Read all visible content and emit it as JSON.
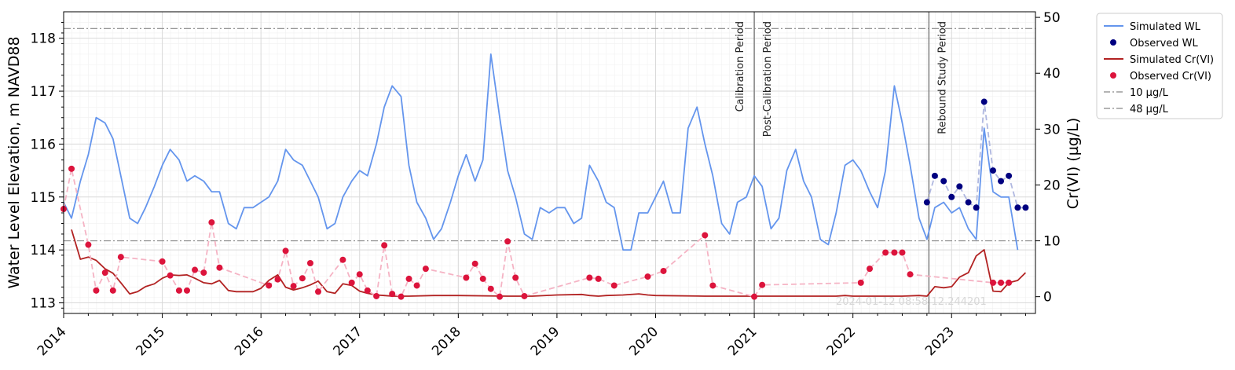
{
  "chart_data": {
    "type": "line",
    "title": "",
    "ylabel_left": "Water Level Elevation, m NAVD88",
    "ylabel_right": "Cr(VI) (µg/L)",
    "xlim": [
      2014.0,
      2023.85
    ],
    "ylim_left": [
      112.8,
      118.5
    ],
    "ylim_right": [
      -3.0,
      51.0
    ],
    "x_ticks": [
      2014,
      2015,
      2016,
      2017,
      2018,
      2019,
      2020,
      2021,
      2022,
      2023
    ],
    "x_tick_labels": [
      "2014",
      "2015",
      "2016",
      "2017",
      "2018",
      "2019",
      "2020",
      "2021",
      "2022",
      "2023"
    ],
    "y_left_ticks": [
      113,
      114,
      115,
      116,
      117,
      118
    ],
    "y_left_tick_labels": [
      "113",
      "114",
      "115",
      "116",
      "117",
      "118"
    ],
    "y_right_ticks": [
      0,
      10,
      20,
      30,
      40,
      50
    ],
    "y_right_tick_labels": [
      "0",
      "10",
      "20",
      "30",
      "40",
      "50"
    ],
    "grid": true,
    "legend_position": "outside-top-right",
    "watermark": "2024-01-12 08:58:12.244201",
    "periods": [
      {
        "x": 2021.0,
        "label": "Calibration Period",
        "side": "left"
      },
      {
        "x": 2021.0,
        "label": "Post-Calibration Period",
        "side": "right"
      },
      {
        "x": 2022.77,
        "label": "Rebound Study Period",
        "side": "right"
      }
    ],
    "hlines": [
      {
        "name": "10 µg/L",
        "y": 10,
        "color": "#888888"
      },
      {
        "name": "48 µg/L",
        "y": 48,
        "color": "#888888"
      }
    ],
    "series": [
      {
        "name": "Simulated WL",
        "kind": "line",
        "axis": "left",
        "color": "#6495ed",
        "x": [
          2014.0,
          2014.08,
          2014.17,
          2014.25,
          2014.33,
          2014.42,
          2014.5,
          2014.58,
          2014.67,
          2014.75,
          2014.83,
          2014.92,
          2015.0,
          2015.08,
          2015.17,
          2015.25,
          2015.33,
          2015.42,
          2015.5,
          2015.58,
          2015.67,
          2015.75,
          2015.83,
          2015.92,
          2016.0,
          2016.08,
          2016.17,
          2016.25,
          2016.33,
          2016.42,
          2016.5,
          2016.58,
          2016.67,
          2016.75,
          2016.83,
          2016.92,
          2017.0,
          2017.08,
          2017.17,
          2017.25,
          2017.33,
          2017.42,
          2017.5,
          2017.58,
          2017.67,
          2017.75,
          2017.83,
          2017.92,
          2018.0,
          2018.08,
          2018.17,
          2018.25,
          2018.33,
          2018.42,
          2018.5,
          2018.58,
          2018.67,
          2018.75,
          2018.83,
          2018.92,
          2019.0,
          2019.08,
          2019.17,
          2019.25,
          2019.33,
          2019.42,
          2019.5,
          2019.58,
          2019.67,
          2019.75,
          2019.83,
          2019.92,
          2020.0,
          2020.08,
          2020.17,
          2020.25,
          2020.33,
          2020.42,
          2020.5,
          2020.58,
          2020.67,
          2020.75,
          2020.83,
          2020.92,
          2021.0,
          2021.08,
          2021.17,
          2021.25,
          2021.33,
          2021.42,
          2021.5,
          2021.58,
          2021.67,
          2021.75,
          2021.83,
          2021.92,
          2022.0,
          2022.08,
          2022.17,
          2022.25,
          2022.33,
          2022.42,
          2022.5,
          2022.58,
          2022.67,
          2022.75,
          2022.83,
          2022.92,
          2023.0,
          2023.08,
          2023.17,
          2023.25,
          2023.33,
          2023.42,
          2023.5,
          2023.58,
          2023.67
        ],
        "y": [
          114.9,
          114.6,
          115.3,
          115.8,
          116.5,
          116.4,
          116.1,
          115.4,
          114.6,
          114.5,
          114.8,
          115.2,
          115.6,
          115.9,
          115.7,
          115.3,
          115.4,
          115.3,
          115.1,
          115.1,
          114.5,
          114.4,
          114.8,
          114.8,
          114.9,
          115.0,
          115.3,
          115.9,
          115.7,
          115.6,
          115.3,
          115.0,
          114.4,
          114.5,
          115.0,
          115.3,
          115.5,
          115.4,
          116.0,
          116.7,
          117.1,
          116.9,
          115.6,
          114.9,
          114.6,
          114.2,
          114.4,
          114.9,
          115.4,
          115.8,
          115.3,
          115.7,
          117.7,
          116.5,
          115.5,
          115.0,
          114.3,
          114.2,
          114.8,
          114.7,
          114.8,
          114.8,
          114.5,
          114.6,
          115.6,
          115.3,
          114.9,
          114.8,
          114.0,
          114.0,
          114.7,
          114.7,
          115.0,
          115.3,
          114.7,
          114.7,
          116.3,
          116.7,
          116.0,
          115.4,
          114.5,
          114.3,
          114.9,
          115.0,
          115.4,
          115.2,
          114.4,
          114.6,
          115.5,
          115.9,
          115.3,
          115.0,
          114.2,
          114.1,
          114.7,
          115.6,
          115.7,
          115.5,
          115.1,
          114.8,
          115.5,
          117.1,
          116.4,
          115.6,
          114.6,
          114.2,
          114.8,
          114.9,
          114.7,
          114.8,
          114.4,
          114.2,
          116.3,
          115.1,
          115.0,
          115.0,
          114.0
        ]
      },
      {
        "name": "Observed WL",
        "kind": "scatter",
        "axis": "left",
        "color": "#000080",
        "dashed_color": "#b0b8e0",
        "x": [
          2022.75,
          2022.83,
          2022.92,
          2023.0,
          2023.08,
          2023.17,
          2023.25,
          2023.33,
          2023.42,
          2023.5,
          2023.58,
          2023.67,
          2023.75
        ],
        "y": [
          114.9,
          115.4,
          115.3,
          115.0,
          115.2,
          114.9,
          114.8,
          116.8,
          115.5,
          115.3,
          115.4,
          114.8,
          114.8
        ]
      },
      {
        "name": "Simulated Cr(VI)",
        "kind": "line",
        "axis": "right",
        "color": "#b22222",
        "x": [
          2014.08,
          2014.17,
          2014.25,
          2014.33,
          2014.42,
          2014.5,
          2014.58,
          2014.67,
          2014.75,
          2014.83,
          2014.92,
          2015.0,
          2015.08,
          2015.17,
          2015.25,
          2015.33,
          2015.42,
          2015.5,
          2015.58,
          2015.67,
          2015.75,
          2015.83,
          2015.92,
          2016.0,
          2016.08,
          2016.17,
          2016.25,
          2016.33,
          2016.42,
          2016.5,
          2016.58,
          2016.67,
          2016.75,
          2016.83,
          2016.92,
          2017.0,
          2017.08,
          2017.17,
          2017.25,
          2017.33,
          2017.5,
          2017.75,
          2018.0,
          2018.5,
          2018.75,
          2019.0,
          2019.25,
          2019.33,
          2019.42,
          2019.5,
          2019.67,
          2019.83,
          2019.92,
          2020.0,
          2020.5,
          2021.0,
          2021.5,
          2021.83,
          2021.92,
          2022.0,
          2022.5,
          2022.67,
          2022.75,
          2022.83,
          2022.92,
          2023.0,
          2023.08,
          2023.17,
          2023.25,
          2023.33,
          2023.42,
          2023.5,
          2023.58,
          2023.67,
          2023.75
        ],
        "y": [
          12.0,
          6.7,
          7.1,
          6.5,
          5.0,
          4.2,
          2.5,
          0.5,
          0.9,
          1.8,
          2.3,
          3.3,
          3.9,
          3.8,
          3.9,
          3.3,
          2.5,
          2.3,
          2.9,
          1.1,
          0.9,
          0.9,
          0.9,
          1.5,
          2.9,
          3.9,
          1.7,
          1.2,
          1.6,
          2.1,
          2.8,
          0.9,
          0.6,
          2.3,
          2.0,
          1.0,
          0.6,
          0.3,
          0.2,
          0.1,
          0.1,
          0.2,
          0.2,
          0.1,
          0.1,
          0.3,
          0.4,
          0.2,
          0.1,
          0.2,
          0.3,
          0.5,
          0.3,
          0.2,
          0.1,
          0.1,
          0.1,
          0.1,
          0.2,
          0.1,
          0.1,
          0.2,
          0.1,
          1.8,
          1.6,
          1.8,
          3.5,
          4.3,
          7.3,
          8.4,
          1.0,
          0.9,
          2.5,
          2.9,
          4.3
        ]
      },
      {
        "name": "Observed Cr(VI)",
        "kind": "scatter",
        "axis": "right",
        "color": "#dc143c",
        "dashed_color": "#f5b3c4",
        "x": [
          2014.0,
          2014.08,
          2014.25,
          2014.33,
          2014.42,
          2014.5,
          2014.58,
          2015.0,
          2015.08,
          2015.17,
          2015.25,
          2015.33,
          2015.42,
          2015.5,
          2015.58,
          2016.08,
          2016.17,
          2016.25,
          2016.33,
          2016.42,
          2016.5,
          2016.58,
          2016.83,
          2016.92,
          2017.0,
          2017.08,
          2017.17,
          2017.25,
          2017.33,
          2017.42,
          2017.5,
          2017.58,
          2017.67,
          2018.08,
          2018.17,
          2018.25,
          2018.33,
          2018.42,
          2018.5,
          2018.58,
          2018.67,
          2019.33,
          2019.42,
          2019.58,
          2019.92,
          2020.08,
          2020.5,
          2020.58,
          2021.0,
          2021.08,
          2022.08,
          2022.17,
          2022.33,
          2022.42,
          2022.5,
          2022.58,
          2023.42,
          2023.5,
          2023.58
        ],
        "y": [
          15.7,
          22.9,
          9.3,
          1.1,
          4.3,
          1.1,
          7.1,
          6.3,
          3.8,
          1.1,
          1.1,
          4.8,
          4.3,
          13.3,
          5.2,
          2.0,
          3.1,
          8.2,
          1.9,
          3.3,
          6.0,
          0.9,
          6.6,
          2.5,
          4.0,
          1.1,
          0.1,
          9.2,
          0.5,
          0.0,
          3.2,
          2.0,
          5.0,
          3.4,
          5.9,
          3.2,
          1.4,
          0.0,
          9.9,
          3.4,
          0.1,
          3.4,
          3.2,
          2.0,
          3.6,
          4.6,
          11.0,
          2.0,
          0.0,
          2.1,
          2.5,
          5.0,
          7.9,
          7.9,
          7.9,
          4.0,
          2.5,
          2.5,
          2.5
        ]
      }
    ]
  }
}
